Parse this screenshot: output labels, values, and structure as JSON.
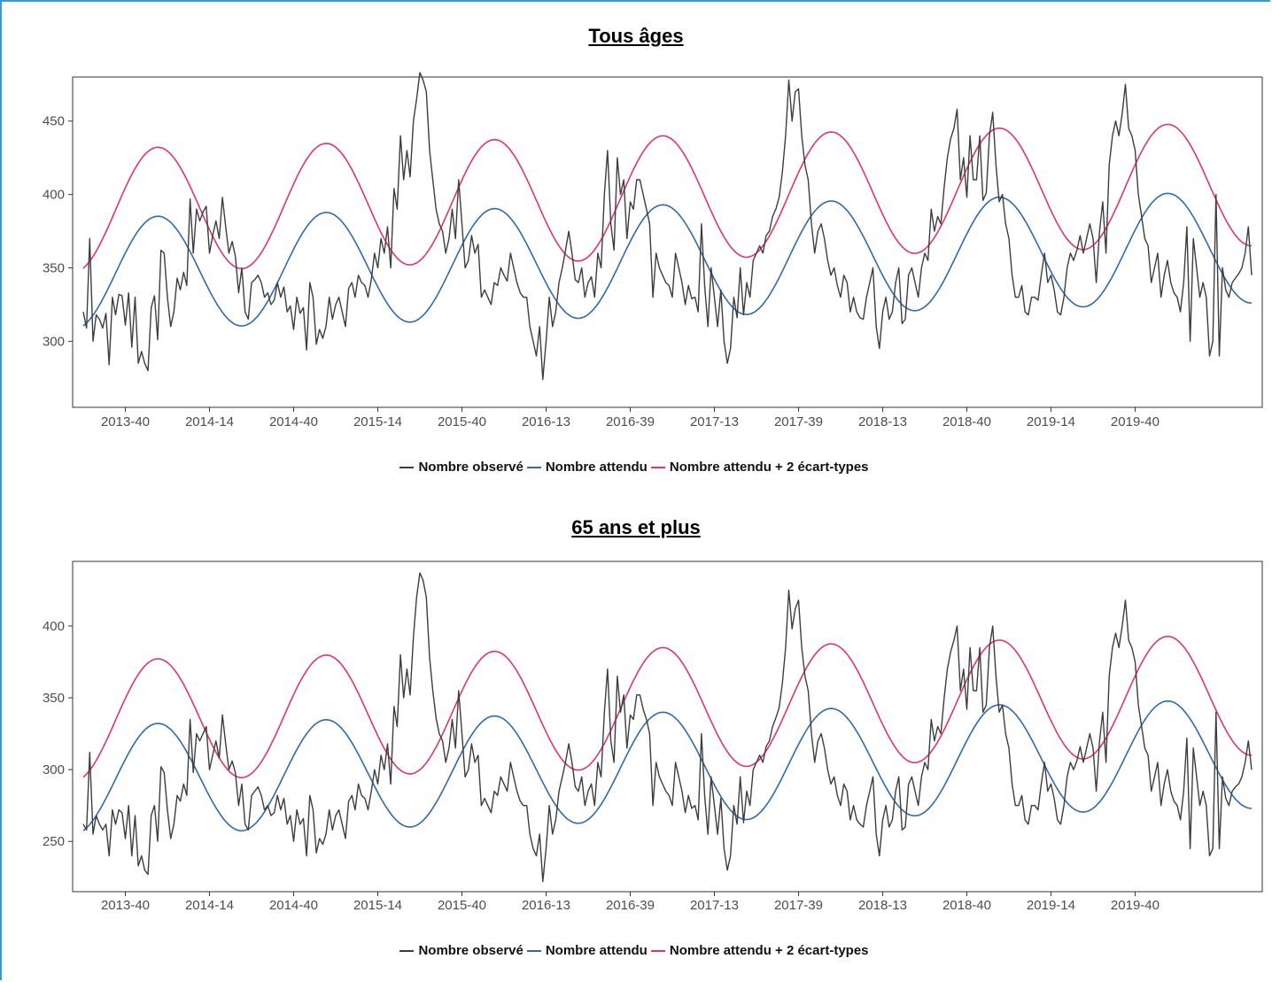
{
  "colors": {
    "observed": "#3d3d3d",
    "expected": "#2e6aad",
    "upper": "#e3336b",
    "frame": "#2b9fd6"
  },
  "legend": {
    "observed": "Nombre observé",
    "expected": "Nombre attendu",
    "upper": "Nombre attendu  + 2 écart-types"
  },
  "chart_data": [
    {
      "type": "line",
      "title": "Tous âges",
      "x_ticks": [
        "2013-40",
        "2014-14",
        "2014-40",
        "2015-14",
        "2015-40",
        "2016-13",
        "2016-39",
        "2017-13",
        "2017-39",
        "2018-13",
        "2018-40",
        "2019-14",
        "2019-40"
      ],
      "x_range_weeks": [
        0,
        342
      ],
      "ylim": [
        255,
        480
      ],
      "y_ticks": [
        300,
        350,
        400,
        450
      ],
      "grid": false,
      "legend_position": "bottom",
      "series": [
        {
          "name": "Nombre observé",
          "kind": "observed",
          "values": [
            320,
            309,
            370,
            300,
            318,
            315,
            309,
            319,
            284,
            330,
            318,
            332,
            331,
            311,
            333,
            296,
            330,
            285,
            293,
            285,
            280,
            323,
            331,
            301,
            362,
            360,
            330,
            310,
            320,
            343,
            335,
            347,
            338,
            397,
            360,
            390,
            382,
            388,
            392,
            360,
            372,
            382,
            370,
            398,
            378,
            360,
            368,
            358,
            333,
            350,
            320,
            315,
            340,
            342,
            345,
            340,
            330,
            333,
            325,
            328,
            340,
            330,
            337,
            320,
            324,
            308,
            330,
            319,
            323,
            294,
            340,
            330,
            298,
            308,
            302,
            310,
            330,
            315,
            325,
            330,
            320,
            310,
            336,
            340,
            330,
            345,
            340,
            338,
            330,
            342,
            360,
            350,
            370,
            360,
            378,
            350,
            404,
            390,
            440,
            410,
            430,
            412,
            450,
            465,
            483,
            478,
            470,
            430,
            410,
            390,
            380,
            375,
            360,
            370,
            390,
            370,
            410,
            380,
            350,
            355,
            372,
            360,
            366,
            330,
            335,
            330,
            325,
            340,
            338,
            350,
            345,
            341,
            360,
            350,
            340,
            333,
            330,
            330,
            310,
            300,
            290,
            310,
            274,
            300,
            330,
            310,
            320,
            340,
            350,
            362,
            375,
            360,
            342,
            340,
            350,
            330,
            340,
            344,
            330,
            360,
            350,
            400,
            430,
            380,
            362,
            425,
            400,
            410,
            370,
            395,
            390,
            410,
            410,
            400,
            390,
            380,
            330,
            360,
            350,
            345,
            340,
            338,
            330,
            360,
            350,
            340,
            325,
            338,
            329,
            330,
            320,
            380,
            338,
            310,
            350,
            330,
            310,
            335,
            300,
            285,
            295,
            330,
            316,
            350,
            318,
            340,
            330,
            355,
            360,
            365,
            360,
            372,
            375,
            385,
            390,
            398,
            415,
            440,
            478,
            450,
            470,
            472,
            440,
            420,
            410,
            380,
            360,
            375,
            380,
            370,
            355,
            345,
            350,
            338,
            330,
            345,
            340,
            320,
            330,
            320,
            316,
            315,
            330,
            340,
            350,
            310,
            295,
            320,
            330,
            315,
            320,
            340,
            350,
            312,
            315,
            345,
            350,
            340,
            330,
            350,
            360,
            355,
            390,
            375,
            385,
            380,
            405,
            425,
            438,
            445,
            458,
            410,
            425,
            398,
            440,
            410,
            410,
            440,
            396,
            401,
            440,
            456,
            420,
            395,
            400,
            380,
            370,
            345,
            330,
            330,
            338,
            320,
            318,
            330,
            330,
            328,
            345,
            360,
            340,
            345,
            335,
            320,
            318,
            330,
            350,
            360,
            355,
            362,
            372,
            360,
            370,
            380,
            370,
            340,
            375,
            395,
            360,
            420,
            440,
            450,
            440,
            455,
            475,
            445,
            440,
            430,
            400,
            385,
            370,
            365,
            340,
            350,
            360,
            330,
            345,
            355,
            340,
            333,
            330,
            320,
            340,
            378,
            300,
            370,
            350,
            330,
            340,
            330,
            290,
            300,
            400,
            290,
            350,
            335,
            330,
            340,
            343,
            346,
            350,
            360,
            378,
            345
          ]
        },
        {
          "name": "Nombre attendu",
          "kind": "expected",
          "base": 346,
          "slope": 0.05,
          "amp": 38
        },
        {
          "name": "Nombre attendu  + 2 écart-types",
          "kind": "upper",
          "base": 389,
          "slope": 0.05,
          "amp": 42
        }
      ]
    },
    {
      "type": "line",
      "title": "65 ans et plus",
      "x_ticks": [
        "2013-40",
        "2014-14",
        "2014-40",
        "2015-14",
        "2015-40",
        "2016-13",
        "2016-39",
        "2017-13",
        "2017-39",
        "2018-13",
        "2018-40",
        "2019-14",
        "2019-40"
      ],
      "x_range_weeks": [
        0,
        342
      ],
      "ylim": [
        215,
        445
      ],
      "y_ticks": [
        250,
        300,
        350,
        400
      ],
      "grid": false,
      "legend_position": "bottom",
      "series": [
        {
          "name": "Nombre observé",
          "kind": "observed",
          "values": [
            262,
            258,
            312,
            255,
            268,
            262,
            258,
            262,
            240,
            272,
            262,
            272,
            270,
            252,
            275,
            240,
            268,
            233,
            240,
            230,
            227,
            268,
            275,
            250,
            302,
            298,
            272,
            252,
            262,
            282,
            278,
            290,
            282,
            335,
            298,
            325,
            320,
            325,
            330,
            300,
            310,
            320,
            308,
            338,
            318,
            300,
            306,
            298,
            275,
            290,
            262,
            258,
            282,
            285,
            288,
            282,
            272,
            275,
            268,
            270,
            282,
            272,
            280,
            262,
            268,
            250,
            272,
            262,
            266,
            240,
            282,
            272,
            242,
            252,
            248,
            255,
            272,
            258,
            268,
            272,
            262,
            252,
            278,
            282,
            272,
            290,
            282,
            280,
            272,
            285,
            300,
            290,
            310,
            300,
            318,
            290,
            344,
            330,
            380,
            350,
            370,
            352,
            392,
            420,
            437,
            432,
            420,
            378,
            355,
            336,
            325,
            320,
            305,
            315,
            335,
            315,
            355,
            325,
            295,
            300,
            318,
            305,
            310,
            275,
            280,
            275,
            270,
            285,
            282,
            295,
            290,
            285,
            305,
            295,
            285,
            278,
            275,
            275,
            255,
            245,
            240,
            255,
            222,
            245,
            275,
            255,
            265,
            285,
            295,
            305,
            318,
            305,
            288,
            285,
            295,
            275,
            285,
            290,
            275,
            305,
            295,
            340,
            370,
            320,
            305,
            365,
            340,
            352,
            315,
            338,
            335,
            352,
            352,
            342,
            335,
            325,
            275,
            305,
            295,
            290,
            285,
            282,
            275,
            305,
            295,
            285,
            270,
            282,
            273,
            275,
            265,
            325,
            282,
            255,
            295,
            275,
            255,
            280,
            245,
            230,
            240,
            275,
            262,
            295,
            263,
            285,
            275,
            300,
            305,
            310,
            305,
            316,
            320,
            330,
            336,
            343,
            360,
            385,
            425,
            398,
            412,
            418,
            385,
            365,
            355,
            325,
            305,
            320,
            325,
            315,
            300,
            290,
            295,
            282,
            275,
            290,
            285,
            265,
            275,
            265,
            262,
            260,
            275,
            285,
            295,
            255,
            240,
            265,
            275,
            260,
            265,
            285,
            295,
            258,
            260,
            290,
            295,
            285,
            275,
            295,
            305,
            300,
            335,
            320,
            330,
            325,
            350,
            370,
            382,
            390,
            400,
            355,
            370,
            342,
            385,
            355,
            355,
            385,
            340,
            345,
            385,
            400,
            365,
            340,
            345,
            325,
            315,
            290,
            275,
            275,
            282,
            265,
            262,
            275,
            275,
            272,
            290,
            305,
            285,
            290,
            280,
            265,
            262,
            275,
            295,
            305,
            300,
            306,
            316,
            305,
            315,
            325,
            315,
            285,
            320,
            340,
            305,
            365,
            385,
            395,
            385,
            400,
            418,
            390,
            385,
            375,
            345,
            330,
            315,
            310,
            285,
            295,
            305,
            275,
            290,
            300,
            285,
            278,
            275,
            265,
            285,
            322,
            245,
            315,
            295,
            275,
            285,
            275,
            240,
            245,
            340,
            245,
            295,
            280,
            275,
            285,
            288,
            290,
            295,
            305,
            320,
            300
          ]
        },
        {
          "name": "Nombre attendu",
          "kind": "expected",
          "base": 293,
          "slope": 0.05,
          "amp": 38
        },
        {
          "name": "Nombre attendu  + 2 écart-types",
          "kind": "upper",
          "base": 334,
          "slope": 0.05,
          "amp": 42
        }
      ]
    }
  ]
}
